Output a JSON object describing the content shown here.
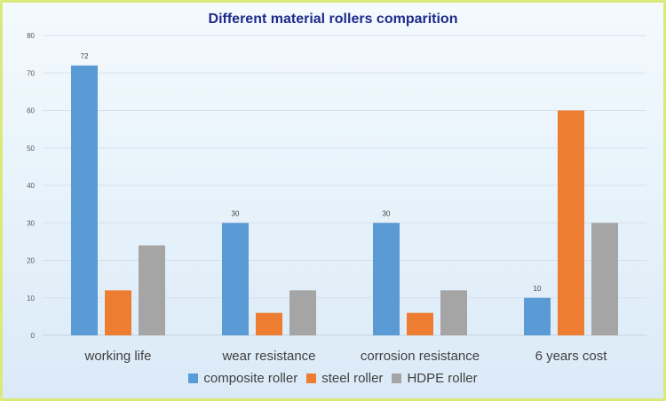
{
  "chart_data": {
    "type": "bar",
    "title": "Different material rollers comparition",
    "categories": [
      "working life",
      "wear resistance",
      "corrosion resistance",
      "6 years cost"
    ],
    "series": [
      {
        "name": "composite roller",
        "color": "#5b9bd5",
        "values": [
          72,
          30,
          30,
          10
        ]
      },
      {
        "name": "steel roller",
        "color": "#ed7d31",
        "values": [
          12,
          6,
          6,
          60
        ]
      },
      {
        "name": "HDPE roller",
        "color": "#a5a5a5",
        "values": [
          24,
          12,
          12,
          30
        ]
      }
    ],
    "data_labels": [
      {
        "series": 0,
        "category": 0,
        "text": "72"
      },
      {
        "series": 0,
        "category": 1,
        "text": "30"
      },
      {
        "series": 0,
        "category": 2,
        "text": "30"
      },
      {
        "series": 0,
        "category": 3,
        "text": "10"
      }
    ],
    "ylim": [
      0,
      80
    ],
    "yticks": [
      "0",
      "10",
      "20",
      "30",
      "40",
      "50",
      "60",
      "70",
      "80"
    ],
    "grid": true,
    "legend_position": "bottom",
    "xlabel": "",
    "ylabel": ""
  }
}
